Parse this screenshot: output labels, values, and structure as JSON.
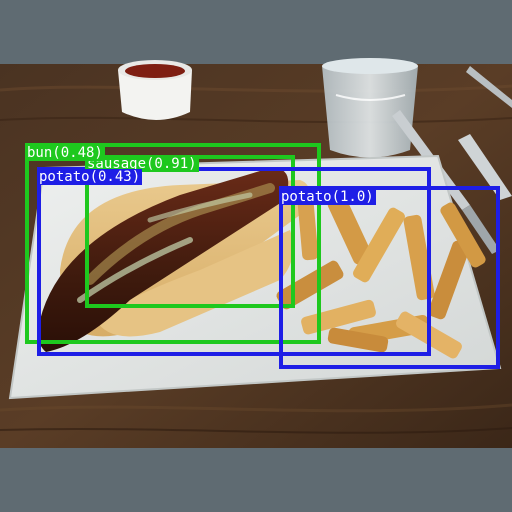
{
  "colors": {
    "letterbox": "#5f6b72",
    "bun_box": "#1ec81e",
    "sausage_box": "#1ec81e",
    "potato_box": "#1e1ee6",
    "label_text": "#ffffff"
  },
  "detections": [
    {
      "id": "bun",
      "label": "bun(0.48)",
      "class": "bun",
      "score": 0.48,
      "color": "#1ec81e"
    },
    {
      "id": "sausage",
      "label": "sausage(0.91)",
      "class": "sausage",
      "score": 0.91,
      "color": "#1ec81e"
    },
    {
      "id": "potato-left",
      "label": "potato(0.43)",
      "class": "potato",
      "score": 0.43,
      "color": "#1e1ee6"
    },
    {
      "id": "potato-right",
      "label": "potato(1.0)",
      "class": "potato",
      "score": 1.0,
      "color": "#1e1ee6"
    }
  ],
  "scene": {
    "description_icons": [
      "hot-dog-icon",
      "fries-icon",
      "ketchup-cup-icon",
      "water-glass-icon",
      "fork-icon",
      "knife-icon",
      "plate-icon",
      "table-icon"
    ]
  }
}
